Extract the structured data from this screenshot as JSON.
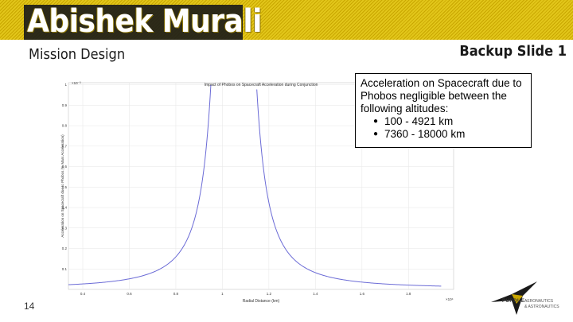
{
  "slide": {
    "title": "Abishek Murali",
    "subtitle": "Mission Design",
    "backup_label": "Backup Slide 1",
    "page_number": "14"
  },
  "note": {
    "text": "Acceleration on Spacecraft due to Phobos negligible between the following altitudes:",
    "bullets": [
      "100 - 4921 km",
      "7360 - 18000 km"
    ]
  },
  "plot": {
    "title": "Impact of Phobos on Spacecraft Acceleration during Conjunction",
    "xlabel": "Radial Distance (km)",
    "ylabel": "Acceleration on Spacecraft due to Phobos (% Mars Acceleration)",
    "x_ticks": [
      "0.4",
      "0.6",
      "0.8",
      "1",
      "1.2",
      "1.4",
      "1.6",
      "1.8"
    ],
    "x_multiplier": "×10⁴",
    "y_ticks": [
      "0.1",
      "0.2",
      "0.3",
      "0.4",
      "0.5",
      "0.6",
      "0.7",
      "0.8",
      "0.9",
      "1"
    ],
    "y_multiplier": "×10⁻³",
    "line_color": "#6b6bd6"
  },
  "logo": {
    "mark": "PURDUE",
    "line1": "AERONAUTICS",
    "line2": "& ASTRONAUTICS"
  }
}
